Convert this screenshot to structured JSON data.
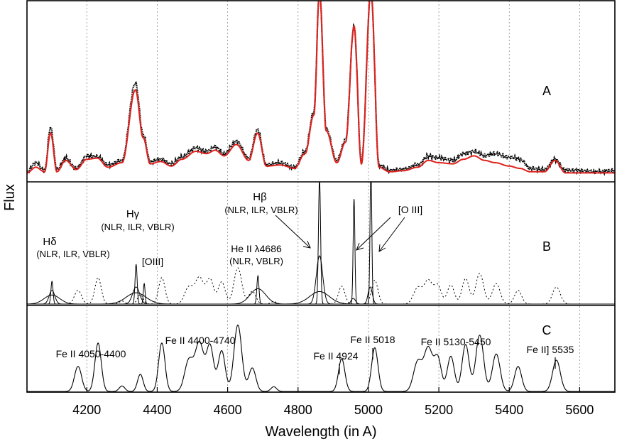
{
  "chart_data": {
    "type": "line",
    "xlabel": "Wavelength (in A)",
    "ylabel": "Flux",
    "xlim": [
      4030,
      5700
    ],
    "x_ticks": [
      4200,
      4400,
      4600,
      4800,
      5000,
      5200,
      5400,
      5600
    ],
    "x_tick_labels": [
      "4200",
      "4400",
      "4600",
      "4800",
      "5000",
      "5200",
      "5400",
      "5600"
    ],
    "grid": "vertical dotted",
    "panels": [
      {
        "label": "A",
        "series": [
          {
            "role": "observed",
            "color": "#000000",
            "style": "dots",
            "x": [
              4030,
              4055,
              4080,
              4097,
              4115,
              4140,
              4170,
              4200,
              4230,
              4260,
              4300,
              4338,
              4360,
              4380,
              4410,
              4440,
              4470,
              4510,
              4540,
              4565,
              4590,
              4625,
              4660,
              4685,
              4710,
              4750,
              4790,
              4820,
              4845,
              4861,
              4880,
              4910,
              4935,
              4959,
              4980,
              5007,
              5030,
              5060,
              5100,
              5140,
              5170,
              5200,
              5240,
              5270,
              5300,
              5330,
              5360,
              5400,
              5430,
              5460,
              5500,
              5530,
              5560,
              5600,
              5650,
              5700
            ],
            "y": [
              0.02,
              0.1,
              0.03,
              0.41,
              0.04,
              0.14,
              0.05,
              0.16,
              0.15,
              0.08,
              0.12,
              0.8,
              0.35,
              0.11,
              0.13,
              0.09,
              0.15,
              0.23,
              0.2,
              0.24,
              0.18,
              0.29,
              0.14,
              0.39,
              0.08,
              0.1,
              0.06,
              0.2,
              0.55,
              1.6,
              0.4,
              0.12,
              0.3,
              1.3,
              0.1,
              1.6,
              0.08,
              0.03,
              0.04,
              0.08,
              0.16,
              0.14,
              0.12,
              0.18,
              0.2,
              0.16,
              0.18,
              0.15,
              0.13,
              0.05,
              0.04,
              0.13,
              0.03,
              0.03,
              0.02,
              0.03
            ]
          },
          {
            "role": "model fit",
            "color": "#e0201c",
            "style": "line",
            "x": [
              4030,
              4055,
              4080,
              4097,
              4115,
              4140,
              4170,
              4200,
              4230,
              4260,
              4300,
              4338,
              4360,
              4380,
              4410,
              4440,
              4470,
              4510,
              4540,
              4565,
              4590,
              4625,
              4660,
              4685,
              4710,
              4750,
              4790,
              4820,
              4845,
              4861,
              4880,
              4910,
              4935,
              4959,
              4980,
              5007,
              5030,
              5060,
              5100,
              5140,
              5170,
              5200,
              5240,
              5270,
              5300,
              5330,
              5360,
              5400,
              5430,
              5460,
              5500,
              5530,
              5560,
              5600,
              5650,
              5700
            ],
            "y": [
              0.01,
              0.06,
              0.02,
              0.36,
              0.02,
              0.12,
              0.04,
              0.13,
              0.14,
              0.06,
              0.1,
              0.74,
              0.32,
              0.09,
              0.11,
              0.07,
              0.13,
              0.2,
              0.18,
              0.21,
              0.16,
              0.26,
              0.12,
              0.36,
              0.07,
              0.08,
              0.05,
              0.18,
              0.52,
              1.6,
              0.38,
              0.1,
              0.28,
              1.3,
              0.09,
              1.6,
              0.06,
              0.02,
              0.03,
              0.06,
              0.12,
              0.1,
              0.09,
              0.13,
              0.16,
              0.12,
              0.1,
              0.07,
              0.05,
              0.02,
              0.02,
              0.12,
              0.01,
              0.01,
              0.01,
              0.01
            ]
          }
        ]
      },
      {
        "label": "B",
        "components": [
          {
            "name": "Hδ NLR",
            "center": 4101,
            "amp": 0.4,
            "sigma": 3,
            "style": "solid"
          },
          {
            "name": "Hδ ILR",
            "center": 4101,
            "amp": 0.24,
            "sigma": 8,
            "style": "solid"
          },
          {
            "name": "Hδ VBLR",
            "center": 4101,
            "amp": 0.16,
            "sigma": 22,
            "style": "solid"
          },
          {
            "name": "Hγ NLR",
            "center": 4340,
            "amp": 0.7,
            "sigma": 3,
            "style": "solid"
          },
          {
            "name": "Hγ ILR",
            "center": 4340,
            "amp": 0.3,
            "sigma": 10,
            "style": "solid"
          },
          {
            "name": "Hγ VBLR",
            "center": 4340,
            "amp": 0.2,
            "sigma": 28,
            "style": "solid"
          },
          {
            "name": "[OIII] 4363",
            "center": 4363,
            "amp": 0.36,
            "sigma": 2.5,
            "style": "solid"
          },
          {
            "name": "He II 4686 NLR",
            "center": 4686,
            "amp": 0.5,
            "sigma": 3,
            "style": "solid"
          },
          {
            "name": "He II 4686 VBLR",
            "center": 4686,
            "amp": 0.27,
            "sigma": 22,
            "style": "solid"
          },
          {
            "name": "Hβ NLR",
            "center": 4861,
            "amp": 2.2,
            "sigma": 3,
            "style": "solid"
          },
          {
            "name": "Hβ ILR",
            "center": 4861,
            "amp": 0.85,
            "sigma": 9,
            "style": "solid"
          },
          {
            "name": "Hβ VBLR",
            "center": 4861,
            "amp": 0.22,
            "sigma": 28,
            "style": "solid"
          },
          {
            "name": "[O III] 4959 narrow",
            "center": 4959,
            "amp": 1.85,
            "sigma": 2.5,
            "style": "solid"
          },
          {
            "name": "[O III] 4959 wing",
            "center": 4957,
            "amp": 0.1,
            "sigma": 6,
            "style": "solid"
          },
          {
            "name": "[O III] 5007 narrow",
            "center": 5007,
            "amp": 2.5,
            "sigma": 2.5,
            "style": "solid"
          },
          {
            "name": "[O III] 5007 wing",
            "center": 5005,
            "amp": 0.3,
            "sigma": 6,
            "style": "solid"
          },
          {
            "name": "Fe II template",
            "source": "panel C",
            "style": "dotted"
          }
        ],
        "annotations": [
          {
            "text": "Hδ",
            "sub": "(NLR, ILR, VBLR)"
          },
          {
            "text": "Hγ",
            "sub": "(NLR, ILR, VBLR)"
          },
          {
            "text": "[OIII]"
          },
          {
            "text": "He II λ4686",
            "sub": "(NLR, VBLR)"
          },
          {
            "text": "Hβ",
            "sub": "(NLR, ILR, VBLR)"
          },
          {
            "text": "[O III]"
          }
        ]
      },
      {
        "label": "C",
        "feii_components": [
          {
            "center": 4175,
            "amp": 0.32,
            "sigma": 10
          },
          {
            "center": 4232,
            "amp": 0.62,
            "sigma": 9
          },
          {
            "center": 4300,
            "amp": 0.07,
            "sigma": 8
          },
          {
            "center": 4352,
            "amp": 0.22,
            "sigma": 8
          },
          {
            "center": 4413,
            "amp": 0.62,
            "sigma": 9
          },
          {
            "center": 4490,
            "amp": 0.4,
            "sigma": 12
          },
          {
            "center": 4520,
            "amp": 0.62,
            "sigma": 12
          },
          {
            "center": 4550,
            "amp": 0.58,
            "sigma": 10
          },
          {
            "center": 4583,
            "amp": 0.52,
            "sigma": 10
          },
          {
            "center": 4629,
            "amp": 0.85,
            "sigma": 11
          },
          {
            "center": 4670,
            "amp": 0.3,
            "sigma": 10
          },
          {
            "center": 4731,
            "amp": 0.06,
            "sigma": 8
          },
          {
            "center": 4924,
            "amp": 0.42,
            "sigma": 9
          },
          {
            "center": 5018,
            "amp": 0.56,
            "sigma": 9
          },
          {
            "center": 5140,
            "amp": 0.38,
            "sigma": 12
          },
          {
            "center": 5170,
            "amp": 0.55,
            "sigma": 12
          },
          {
            "center": 5197,
            "amp": 0.42,
            "sigma": 10
          },
          {
            "center": 5234,
            "amp": 0.45,
            "sigma": 10
          },
          {
            "center": 5276,
            "amp": 0.6,
            "sigma": 10
          },
          {
            "center": 5316,
            "amp": 0.72,
            "sigma": 11
          },
          {
            "center": 5363,
            "amp": 0.48,
            "sigma": 11
          },
          {
            "center": 5425,
            "amp": 0.32,
            "sigma": 10
          },
          {
            "center": 5534,
            "amp": 0.4,
            "sigma": 11
          }
        ],
        "annotations": [
          {
            "text": "Fe II 4050-4400"
          },
          {
            "text": "Fe II 4400-4740"
          },
          {
            "text": "Fe II 4924"
          },
          {
            "text": "Fe II 5018"
          },
          {
            "text": "Fe II 5130-5450"
          },
          {
            "text": "Fe II] 5535"
          }
        ]
      }
    ]
  }
}
